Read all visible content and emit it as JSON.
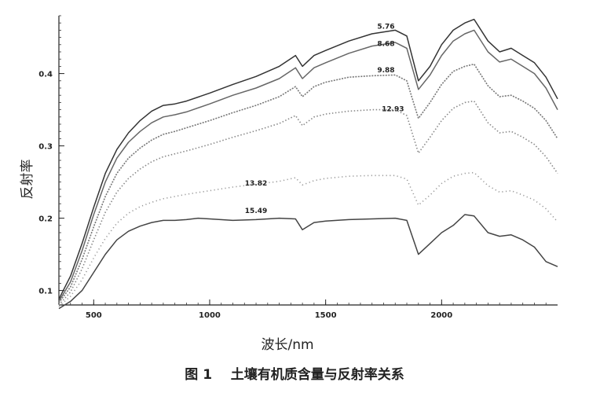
{
  "chart_data": {
    "type": "line",
    "title": "",
    "caption": "图 1    土壤有机质含量与反射率关系",
    "xlabel": "波长/nm",
    "ylabel": "反射率",
    "xlim": [
      350,
      2500
    ],
    "ylim": [
      0.08,
      0.48
    ],
    "xticks": [
      500,
      1000,
      1500,
      2000
    ],
    "yticks": [
      0.1,
      0.2,
      0.3,
      0.4
    ],
    "ytick_labels": [
      "0.1",
      "0.2",
      "0.3",
      "0.4"
    ],
    "grid": false,
    "legend": "inline labels",
    "series": [
      {
        "name": "5.76",
        "label_at": [
          1760,
          0.462
        ],
        "style": "solid",
        "color": "#333333",
        "x": [
          350,
          400,
          450,
          500,
          550,
          600,
          650,
          700,
          750,
          800,
          850,
          900,
          1000,
          1100,
          1200,
          1300,
          1370,
          1400,
          1450,
          1500,
          1600,
          1700,
          1800,
          1850,
          1900,
          1950,
          2000,
          2050,
          2100,
          2140,
          2200,
          2250,
          2300,
          2350,
          2400,
          2450,
          2500
        ],
        "y": [
          0.088,
          0.12,
          0.165,
          0.215,
          0.262,
          0.295,
          0.318,
          0.335,
          0.348,
          0.356,
          0.358,
          0.362,
          0.373,
          0.385,
          0.396,
          0.41,
          0.425,
          0.41,
          0.425,
          0.432,
          0.445,
          0.455,
          0.46,
          0.452,
          0.39,
          0.41,
          0.44,
          0.46,
          0.47,
          0.475,
          0.445,
          0.43,
          0.435,
          0.425,
          0.415,
          0.395,
          0.365
        ]
      },
      {
        "name": "8.68",
        "label_at": [
          1760,
          0.438
        ],
        "style": "solid",
        "color": "#666666",
        "x": [
          350,
          400,
          450,
          500,
          550,
          600,
          650,
          700,
          750,
          800,
          850,
          900,
          1000,
          1100,
          1200,
          1300,
          1370,
          1400,
          1450,
          1500,
          1600,
          1700,
          1800,
          1850,
          1900,
          1950,
          2000,
          2050,
          2100,
          2140,
          2200,
          2250,
          2300,
          2350,
          2400,
          2450,
          2500
        ],
        "y": [
          0.085,
          0.112,
          0.155,
          0.205,
          0.25,
          0.283,
          0.305,
          0.32,
          0.332,
          0.34,
          0.343,
          0.347,
          0.358,
          0.37,
          0.38,
          0.393,
          0.408,
          0.393,
          0.408,
          0.415,
          0.428,
          0.438,
          0.443,
          0.435,
          0.378,
          0.398,
          0.425,
          0.445,
          0.455,
          0.46,
          0.43,
          0.416,
          0.42,
          0.41,
          0.4,
          0.38,
          0.35
        ]
      },
      {
        "name": "9.88",
        "label_at": [
          1760,
          0.402
        ],
        "style": "dotted-dense",
        "color": "#777777",
        "x": [
          350,
          400,
          450,
          500,
          550,
          600,
          650,
          700,
          750,
          800,
          850,
          900,
          1000,
          1100,
          1200,
          1300,
          1370,
          1400,
          1450,
          1500,
          1600,
          1700,
          1800,
          1850,
          1900,
          1950,
          2000,
          2050,
          2100,
          2140,
          2200,
          2250,
          2300,
          2350,
          2400,
          2450,
          2500
        ],
        "y": [
          0.083,
          0.105,
          0.143,
          0.188,
          0.23,
          0.262,
          0.283,
          0.297,
          0.308,
          0.316,
          0.32,
          0.325,
          0.335,
          0.346,
          0.356,
          0.368,
          0.382,
          0.368,
          0.382,
          0.388,
          0.395,
          0.397,
          0.398,
          0.39,
          0.338,
          0.36,
          0.385,
          0.403,
          0.41,
          0.413,
          0.383,
          0.368,
          0.37,
          0.362,
          0.352,
          0.335,
          0.31
        ]
      },
      {
        "name": "12.93",
        "label_at": [
          1790,
          0.348
        ],
        "style": "dotted",
        "color": "#888888",
        "x": [
          350,
          400,
          450,
          500,
          550,
          600,
          650,
          700,
          750,
          800,
          850,
          900,
          1000,
          1100,
          1200,
          1300,
          1370,
          1400,
          1450,
          1500,
          1600,
          1700,
          1800,
          1850,
          1900,
          1950,
          2000,
          2050,
          2100,
          2140,
          2200,
          2250,
          2300,
          2350,
          2400,
          2450,
          2500
        ],
        "y": [
          0.08,
          0.098,
          0.13,
          0.17,
          0.208,
          0.236,
          0.255,
          0.268,
          0.278,
          0.285,
          0.289,
          0.293,
          0.302,
          0.312,
          0.321,
          0.331,
          0.342,
          0.328,
          0.34,
          0.344,
          0.348,
          0.35,
          0.35,
          0.342,
          0.29,
          0.312,
          0.335,
          0.352,
          0.36,
          0.362,
          0.332,
          0.318,
          0.32,
          0.312,
          0.302,
          0.285,
          0.262
        ]
      },
      {
        "name": "13.82",
        "label_at": [
          1200,
          0.245
        ],
        "style": "dotted-sparse",
        "color": "#999999",
        "x": [
          350,
          400,
          450,
          500,
          550,
          600,
          650,
          700,
          750,
          800,
          850,
          900,
          1000,
          1100,
          1200,
          1300,
          1370,
          1400,
          1450,
          1500,
          1600,
          1700,
          1800,
          1850,
          1900,
          1950,
          2000,
          2050,
          2100,
          2140,
          2200,
          2250,
          2300,
          2350,
          2400,
          2450,
          2500
        ],
        "y": [
          0.078,
          0.092,
          0.115,
          0.145,
          0.172,
          0.193,
          0.207,
          0.216,
          0.222,
          0.227,
          0.23,
          0.233,
          0.238,
          0.243,
          0.247,
          0.251,
          0.256,
          0.246,
          0.252,
          0.255,
          0.258,
          0.259,
          0.259,
          0.254,
          0.218,
          0.232,
          0.248,
          0.258,
          0.262,
          0.263,
          0.245,
          0.236,
          0.238,
          0.232,
          0.225,
          0.213,
          0.195
        ]
      },
      {
        "name": "15.49",
        "label_at": [
          1200,
          0.207
        ],
        "style": "solid",
        "color": "#444444",
        "x": [
          350,
          400,
          450,
          500,
          550,
          600,
          650,
          700,
          750,
          800,
          850,
          900,
          950,
          1000,
          1100,
          1200,
          1300,
          1370,
          1400,
          1450,
          1500,
          1600,
          1700,
          1800,
          1850,
          1900,
          1950,
          2000,
          2050,
          2100,
          2140,
          2200,
          2250,
          2300,
          2350,
          2400,
          2450,
          2500
        ],
        "y": [
          0.075,
          0.085,
          0.1,
          0.125,
          0.15,
          0.17,
          0.182,
          0.189,
          0.194,
          0.197,
          0.197,
          0.198,
          0.2,
          0.199,
          0.197,
          0.198,
          0.2,
          0.199,
          0.184,
          0.194,
          0.196,
          0.198,
          0.199,
          0.2,
          0.197,
          0.15,
          0.165,
          0.18,
          0.19,
          0.205,
          0.203,
          0.18,
          0.175,
          0.177,
          0.17,
          0.16,
          0.14,
          0.133
        ]
      }
    ]
  }
}
